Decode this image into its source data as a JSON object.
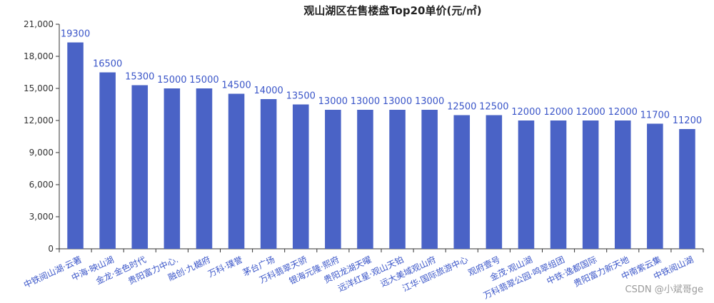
{
  "chart_data": {
    "type": "bar",
    "title": "观山湖区在售楼盘Top20单价(元/㎡)",
    "categories": [
      "中铁阅山湖·云著",
      "中海·映山湖",
      "金龙·金色时代",
      "贵阳富力中心.",
      "融创·九樾府",
      "万科·璞誉",
      "茅台广场",
      "万科翡翠天骄",
      "银海元隆·熙府",
      "贵阳龙湖天曜",
      "远洋红星·观山天铂",
      "远大美域观山府",
      "江华·国际旅游中心",
      "观府壹号",
      "金茂·观山湖",
      "万科翡翠公园·鸣翠组团",
      "中铁·逸都国际",
      "贵阳富力新天地",
      "中南紫云集",
      "中铁阅山湖"
    ],
    "values": [
      19300,
      16500,
      15300,
      15000,
      15000,
      14500,
      14000,
      13500,
      13000,
      13000,
      13000,
      13000,
      12500,
      12500,
      12000,
      12000,
      12000,
      12000,
      11700,
      11200
    ],
    "ylim": [
      0,
      21000
    ],
    "yticks": [
      "0",
      "3,000",
      "6,000",
      "9,000",
      "12,000",
      "15,000",
      "18,000",
      "21,000"
    ],
    "grid": false,
    "xlabel": "",
    "ylabel": "",
    "colors": {
      "bar": "#4a63c6",
      "label": "#3a55c8"
    }
  },
  "watermark": "CSDN @小斌哥ge"
}
